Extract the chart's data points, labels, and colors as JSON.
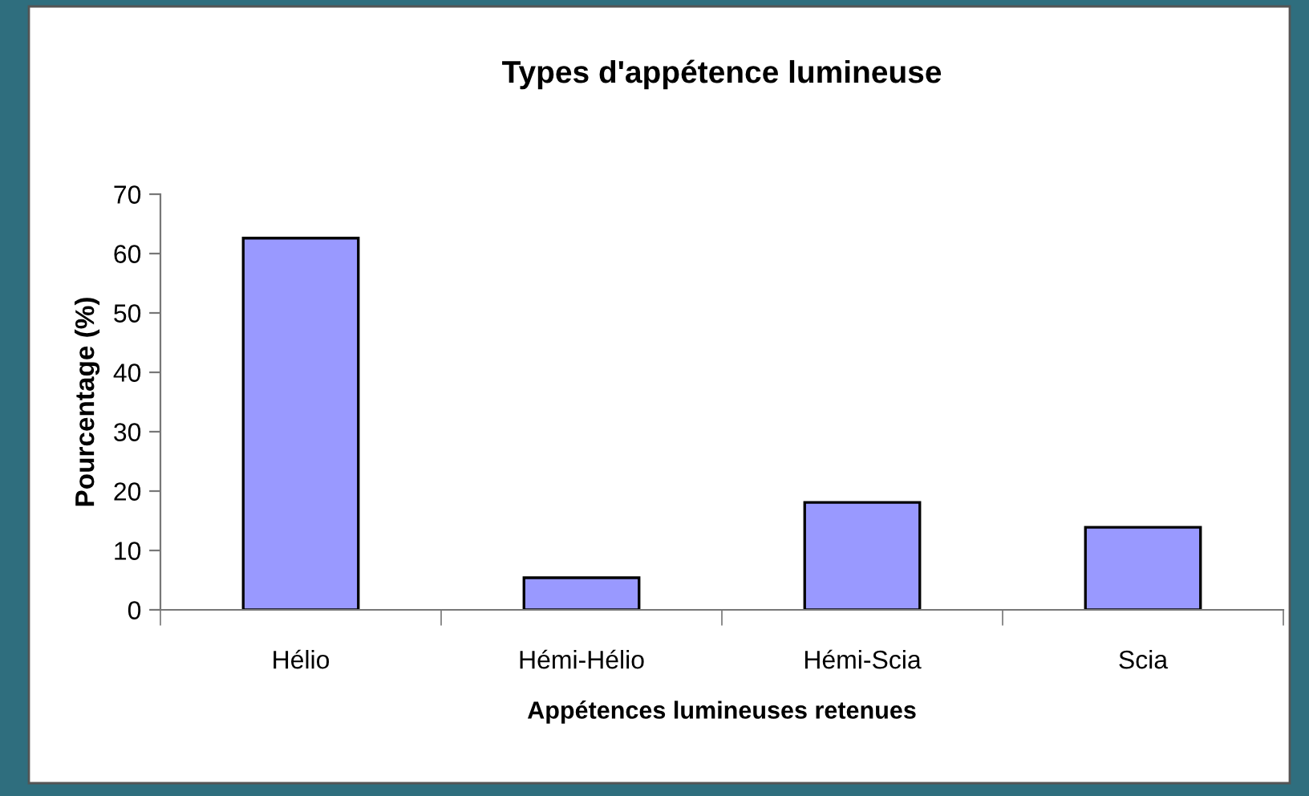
{
  "chart_data": {
    "type": "bar",
    "title": "Types d'appétence lumineuse",
    "xlabel": "Appétences lumineuses retenues",
    "ylabel": "Pourcentage (%)",
    "categories": [
      "Hélio",
      "Hémi-Hélio",
      "Hémi-Scia",
      "Scia"
    ],
    "values": [
      62.6,
      5.4,
      18.1,
      13.9
    ],
    "color": "#9999ff",
    "ylim": [
      0,
      70
    ],
    "yticks": [
      0,
      10,
      20,
      30,
      40,
      50,
      60,
      70
    ]
  }
}
